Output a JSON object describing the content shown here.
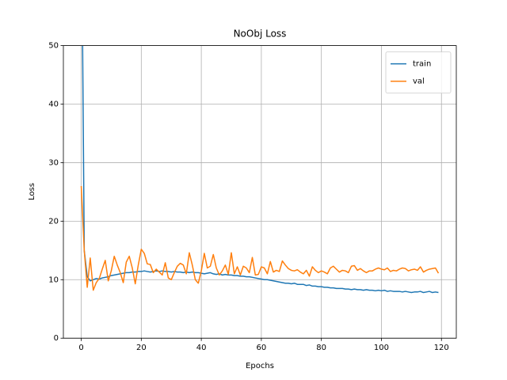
{
  "chart_data": {
    "type": "line",
    "title": "NoObj Loss",
    "xlabel": "Epochs",
    "ylabel": "Loss",
    "x": [
      0,
      1,
      2,
      3,
      4,
      5,
      6,
      7,
      8,
      9,
      10,
      11,
      12,
      13,
      14,
      15,
      16,
      17,
      18,
      19,
      20,
      21,
      22,
      23,
      24,
      25,
      26,
      27,
      28,
      29,
      30,
      31,
      32,
      33,
      34,
      35,
      36,
      37,
      38,
      39,
      40,
      41,
      42,
      43,
      44,
      45,
      46,
      47,
      48,
      49,
      50,
      51,
      52,
      53,
      54,
      55,
      56,
      57,
      58,
      59,
      60,
      61,
      62,
      63,
      64,
      65,
      66,
      67,
      68,
      69,
      70,
      71,
      72,
      73,
      74,
      75,
      76,
      77,
      78,
      79,
      80,
      81,
      82,
      83,
      84,
      85,
      86,
      87,
      88,
      89,
      90,
      91,
      92,
      93,
      94,
      95,
      96,
      97,
      98,
      99,
      100,
      101,
      102,
      103,
      104,
      105,
      106,
      107,
      108,
      109,
      110,
      111,
      112,
      113,
      114,
      115,
      116,
      117,
      118,
      119
    ],
    "series": [
      {
        "name": "train",
        "color": "#1f77b4",
        "values": [
          80,
          15,
          10.5,
          9.8,
          10,
          10.2,
          10.1,
          10.3,
          10.4,
          10.5,
          10.7,
          10.8,
          10.9,
          11,
          11.1,
          11.2,
          11.2,
          11.3,
          11.3,
          11.4,
          11.4,
          11.5,
          11.4,
          11.3,
          11.4,
          11.5,
          11.4,
          11.5,
          11.4,
          11.4,
          11.3,
          11.4,
          11.3,
          11.3,
          11.2,
          11.3,
          11.2,
          11.3,
          11.2,
          11.2,
          11.1,
          11,
          11.1,
          11.2,
          11,
          10.9,
          11,
          10.8,
          10.9,
          10.8,
          10.8,
          10.7,
          10.7,
          10.6,
          10.6,
          10.5,
          10.5,
          10.4,
          10.3,
          10.2,
          10.1,
          10,
          10,
          9.9,
          9.8,
          9.7,
          9.6,
          9.5,
          9.4,
          9.4,
          9.3,
          9.4,
          9.2,
          9.2,
          9.2,
          9,
          9.1,
          8.9,
          8.9,
          8.8,
          8.8,
          8.7,
          8.7,
          8.6,
          8.6,
          8.5,
          8.5,
          8.5,
          8.4,
          8.4,
          8.3,
          8.4,
          8.3,
          8.3,
          8.2,
          8.3,
          8.2,
          8.2,
          8.1,
          8.2,
          8.1,
          8.2,
          8,
          8.1,
          8,
          8,
          8,
          7.9,
          8,
          7.9,
          7.8,
          7.9,
          7.9,
          8,
          7.8,
          7.9,
          8,
          7.8,
          7.9,
          7.8
        ]
      },
      {
        "name": "val",
        "color": "#ff7f0e",
        "values": [
          26,
          15,
          8.7,
          13.7,
          8.2,
          9.5,
          10.2,
          11.8,
          13.3,
          9.8,
          11.5,
          14,
          12.5,
          11.2,
          9.5,
          13,
          14,
          12,
          9.3,
          12.5,
          15.2,
          14.5,
          12.7,
          12.6,
          11.2,
          11.8,
          11.3,
          10.8,
          12.9,
          10.3,
          10,
          11.2,
          12.3,
          12.8,
          12.5,
          11,
          14.6,
          12.5,
          10,
          9.4,
          11.5,
          14.5,
          12,
          12.3,
          14.3,
          12,
          10.8,
          11.5,
          12.5,
          10.9,
          14.6,
          11,
          12.2,
          10.8,
          12.3,
          12,
          11.2,
          13.8,
          10.8,
          10.9,
          12.2,
          12,
          11,
          13.1,
          11.3,
          11.6,
          11.4,
          13.2,
          12.5,
          11.9,
          11.6,
          11.5,
          11.7,
          11.3,
          11,
          11.6,
          10.6,
          12.2,
          11.6,
          11.2,
          11.5,
          11.3,
          11,
          12,
          12.3,
          11.8,
          11.3,
          11.6,
          11.5,
          11.2,
          12.3,
          12.4,
          11.6,
          11.9,
          11.5,
          11.2,
          11.5,
          11.5,
          11.8,
          12,
          11.8,
          11.7,
          12,
          11.4,
          11.6,
          11.5,
          11.8,
          12,
          11.9,
          11.5,
          11.7,
          11.8,
          11.6,
          12.2,
          11.3,
          11.6,
          11.8,
          11.9,
          12,
          11.1
        ]
      }
    ],
    "xlim": [
      -5.95,
      124.95
    ],
    "ylim": [
      0,
      50
    ],
    "xticks": [
      0,
      20,
      40,
      60,
      80,
      100,
      120
    ],
    "yticks": [
      0,
      10,
      20,
      30,
      40,
      50
    ],
    "grid": true,
    "legend": "upper right"
  }
}
